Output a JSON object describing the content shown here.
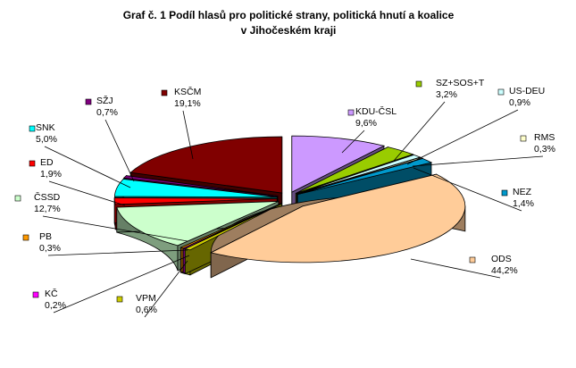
{
  "chart_data": {
    "type": "pie",
    "style": "3d-exploded",
    "title_lines": [
      "Graf č. 1 Podíl hlasů pro politické strany, politická hnutí a koalice",
      "v Jihočeském kraji"
    ],
    "legend": "none",
    "slices": [
      {
        "name": "KDU-ČSL",
        "value_label": "9,6%",
        "value": 9.6,
        "color": "#cc99ff"
      },
      {
        "name": "SZ+SOS+T",
        "value_label": "3,2%",
        "value": 3.2,
        "color": "#99cc00"
      },
      {
        "name": "US-DEU",
        "value_label": "0,9%",
        "value": 0.9,
        "color": "#ccffff"
      },
      {
        "name": "RMS",
        "value_label": "0,3%",
        "value": 0.3,
        "color": "#ffffcc"
      },
      {
        "name": "NEZ",
        "value_label": "1,4%",
        "value": 1.4,
        "color": "#0099cc"
      },
      {
        "name": "ODS",
        "value_label": "44,2%",
        "value": 44.2,
        "color": "#ffcc99"
      },
      {
        "name": "VPM",
        "value_label": "0,6%",
        "value": 0.6,
        "color": "#cccc00"
      },
      {
        "name": "KČ",
        "value_label": "0,2%",
        "value": 0.2,
        "color": "#ff00ff"
      },
      {
        "name": "PB",
        "value_label": "0,3%",
        "value": 0.3,
        "color": "#ff9900"
      },
      {
        "name": "ČSSD",
        "value_label": "12,7%",
        "value": 12.7,
        "color": "#ccffcc"
      },
      {
        "name": "ED",
        "value_label": "1,9%",
        "value": 1.9,
        "color": "#ff0000"
      },
      {
        "name": "SNK",
        "value_label": "5,0%",
        "value": 5.0,
        "color": "#00ffff"
      },
      {
        "name": "SŽJ",
        "value_label": "0,7%",
        "value": 0.7,
        "color": "#800080"
      },
      {
        "name": "KSČM",
        "value_label": "19,1%",
        "value": 19.1,
        "color": "#800000"
      }
    ]
  }
}
